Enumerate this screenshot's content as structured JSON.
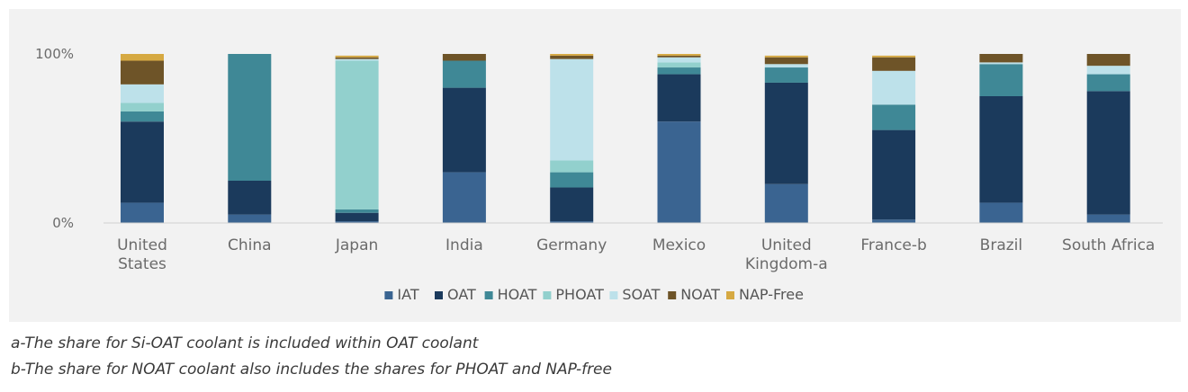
{
  "chart_data": {
    "type": "bar",
    "stacked": true,
    "categories": [
      "United States",
      "China",
      "Japan",
      "India",
      "Germany",
      "Mexico",
      "United Kingdom-a",
      "France-b",
      "Brazil",
      "South Africa"
    ],
    "category_lines": [
      [
        "United",
        "States"
      ],
      [
        "China"
      ],
      [
        "Japan"
      ],
      [
        "India"
      ],
      [
        "Germany"
      ],
      [
        "Mexico"
      ],
      [
        "United",
        "Kingdom-a"
      ],
      [
        "France-b"
      ],
      [
        "Brazil"
      ],
      [
        "South Africa"
      ]
    ],
    "y_ticks": [
      {
        "value": 0,
        "label": "0%"
      },
      {
        "value": 100,
        "label": "100%"
      }
    ],
    "ylim": [
      0,
      100
    ],
    "grid": false,
    "legend_position": "bottom",
    "series": [
      {
        "name": "IAT",
        "color": "#3a6491",
        "values": [
          12,
          5,
          1,
          30,
          1,
          60,
          23,
          2,
          12,
          5
        ]
      },
      {
        "name": "OAT",
        "color": "#1b3a5c",
        "values": [
          48,
          20,
          5,
          50,
          20,
          28,
          60,
          53,
          63,
          73
        ]
      },
      {
        "name": "HOAT",
        "color": "#3f8896",
        "values": [
          6,
          75,
          2,
          16,
          9,
          4,
          9,
          15,
          19,
          10
        ]
      },
      {
        "name": "PHOAT",
        "color": "#92d0cd",
        "values": [
          5,
          0,
          88,
          0,
          7,
          3,
          0,
          0,
          0,
          0
        ]
      },
      {
        "name": "SOAT",
        "color": "#bde1ea",
        "values": [
          11,
          0,
          1,
          0,
          60,
          3,
          2,
          20,
          1,
          5
        ]
      },
      {
        "name": "NOAT",
        "color": "#6e5428",
        "values": [
          14,
          0,
          1,
          4,
          2,
          1,
          4,
          8,
          5,
          7
        ]
      },
      {
        "name": "NAP-Free",
        "color": "#d6a942",
        "values": [
          4,
          0,
          1,
          0,
          1,
          1,
          1,
          1,
          0,
          0
        ]
      }
    ]
  },
  "footnotes": {
    "a": "a-The share for Si-OAT coolant is included within OAT coolant",
    "b": "b-The share for NOAT coolant also includes the shares for PHOAT and NAP-free"
  }
}
